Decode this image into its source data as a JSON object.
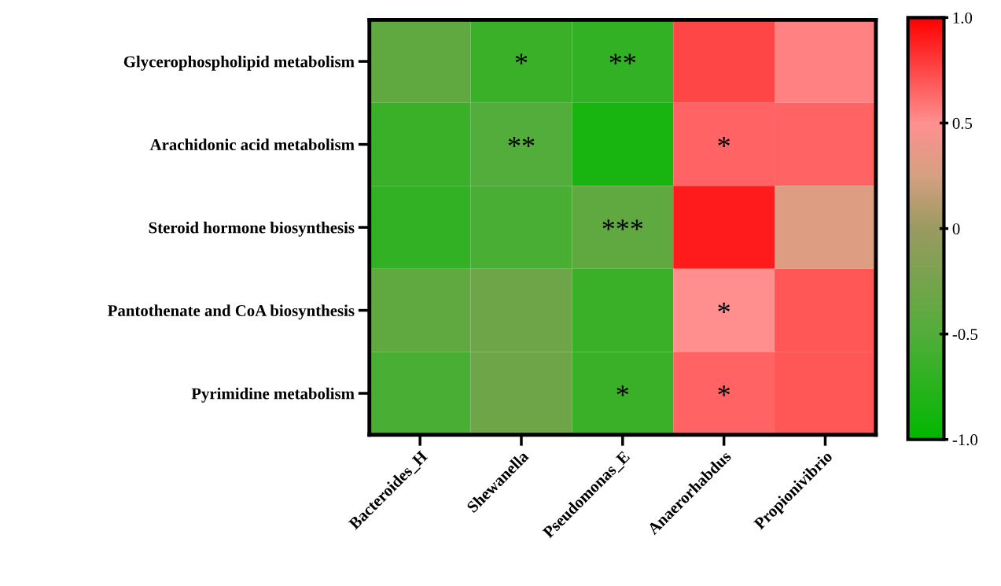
{
  "chart_data": {
    "type": "heatmap",
    "categories": [
      "Bacteroides_H",
      "Shewanella",
      "Pseudomonas_E",
      "Anaerorhabdus",
      "Propionivibrio"
    ],
    "y_categories": [
      "Glycerophospholipid metabolism",
      "Arachidonic acid metabolism",
      "Steroid hormone biosynthesis",
      "Pantothenate and CoA biosynthesis",
      "Pyrimidine metabolism"
    ],
    "cells": [
      [
        -0.4,
        -0.65,
        -0.7,
        0.75,
        0.55
      ],
      [
        -0.65,
        -0.5,
        -0.85,
        0.65,
        0.65
      ],
      [
        -0.7,
        -0.55,
        -0.4,
        0.9,
        0.3
      ],
      [
        -0.4,
        -0.3,
        -0.65,
        0.5,
        0.7
      ],
      [
        -0.55,
        -0.3,
        -0.65,
        0.65,
        0.7
      ]
    ],
    "cell_labels": [
      [
        null,
        "*",
        "**",
        null,
        null
      ],
      [
        null,
        "**",
        null,
        "*",
        null
      ],
      [
        null,
        null,
        "***",
        null,
        null
      ],
      [
        null,
        null,
        null,
        "*",
        null
      ],
      [
        null,
        null,
        "*",
        "*",
        null
      ]
    ],
    "clim": [
      -1.0,
      1.0
    ],
    "cticks": [
      {
        "value": -1,
        "label": "-1.0"
      },
      {
        "value": -0.5,
        "label": "-0.5"
      },
      0,
      {
        "value": 0.5,
        "label": "0.5"
      },
      {
        "value": 1,
        "label": "1.0"
      }
    ]
  }
}
